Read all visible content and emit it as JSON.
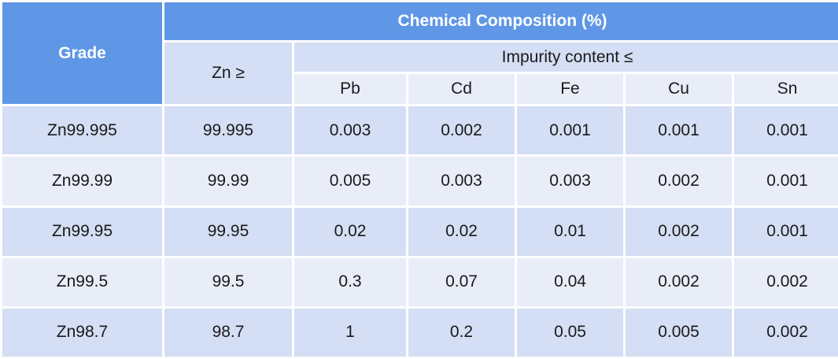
{
  "table": {
    "header": {
      "grade": "Grade",
      "composition": "Chemical Composition (%)",
      "zn": "Zn ≥",
      "impurity": "Impurity content ≤",
      "elements": [
        "Pb",
        "Cd",
        "Fe",
        "Cu",
        "Sn"
      ]
    },
    "rows": [
      {
        "grade": "Zn99.995",
        "zn": "99.995",
        "pb": "0.003",
        "cd": "0.002",
        "fe": "0.001",
        "cu": "0.001",
        "sn": "0.001"
      },
      {
        "grade": "Zn99.99",
        "zn": "99.99",
        "pb": "0.005",
        "cd": "0.003",
        "fe": "0.003",
        "cu": "0.002",
        "sn": "0.001"
      },
      {
        "grade": "Zn99.95",
        "zn": "99.95",
        "pb": "0.02",
        "cd": "0.02",
        "fe": "0.01",
        "cu": "0.002",
        "sn": "0.001"
      },
      {
        "grade": "Zn99.5",
        "zn": "99.5",
        "pb": "0.3",
        "cd": "0.07",
        "fe": "0.04",
        "cu": "0.002",
        "sn": "0.002"
      },
      {
        "grade": "Zn98.7",
        "zn": "98.7",
        "pb": "1",
        "cd": "0.2",
        "fe": "0.05",
        "cu": "0.005",
        "sn": "0.002"
      }
    ],
    "colors": {
      "header_dark": "#5f97e6",
      "row_dark": "#d4def4",
      "row_light": "#e8edf8"
    }
  }
}
